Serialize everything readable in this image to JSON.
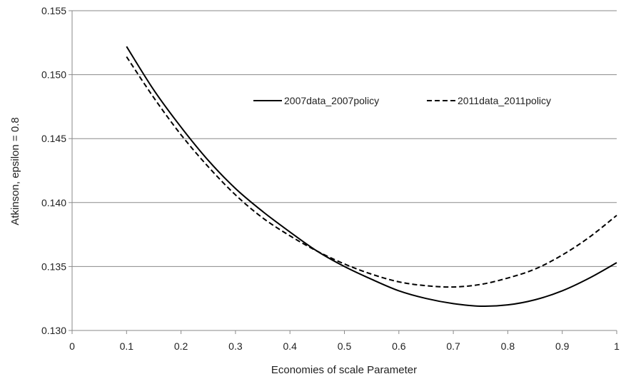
{
  "chart_data": {
    "type": "line",
    "title": "",
    "xlabel": "Economies of scale Parameter",
    "ylabel": "Atkinson, epsilon = 0.8",
    "xlim": [
      0,
      1
    ],
    "ylim": [
      0.13,
      0.155
    ],
    "x_ticks": [
      "0",
      "0.1",
      "0.2",
      "0.3",
      "0.4",
      "0.5",
      "0.6",
      "0.7",
      "0.8",
      "0.9",
      "1"
    ],
    "y_ticks": [
      "0.130",
      "0.135",
      "0.140",
      "0.145",
      "0.150",
      "0.155"
    ],
    "grid": "horizontal",
    "legend_position": "top-right (inside plot)",
    "x": [
      0.1,
      0.15,
      0.2,
      0.25,
      0.3,
      0.35,
      0.4,
      0.45,
      0.5,
      0.55,
      0.6,
      0.65,
      0.7,
      0.75,
      0.8,
      0.85,
      0.9,
      0.95,
      1.0
    ],
    "series": [
      {
        "name": "2007data_2007policy",
        "style": "solid",
        "color": "#000000",
        "values": [
          0.1522,
          0.1488,
          0.1459,
          0.1433,
          0.1411,
          0.1393,
          0.1377,
          0.1362,
          0.135,
          0.134,
          0.1331,
          0.1325,
          0.1321,
          0.1319,
          0.132,
          0.1324,
          0.1331,
          0.1341,
          0.1353
        ]
      },
      {
        "name": "2011data_2011policy",
        "style": "dashed",
        "color": "#000000",
        "values": [
          0.1514,
          0.1482,
          0.1453,
          0.1428,
          0.1406,
          0.1388,
          0.1374,
          0.1362,
          0.1352,
          0.1344,
          0.1338,
          0.1335,
          0.1334,
          0.1336,
          0.1341,
          0.1348,
          0.1359,
          0.1373,
          0.139
        ]
      }
    ]
  }
}
